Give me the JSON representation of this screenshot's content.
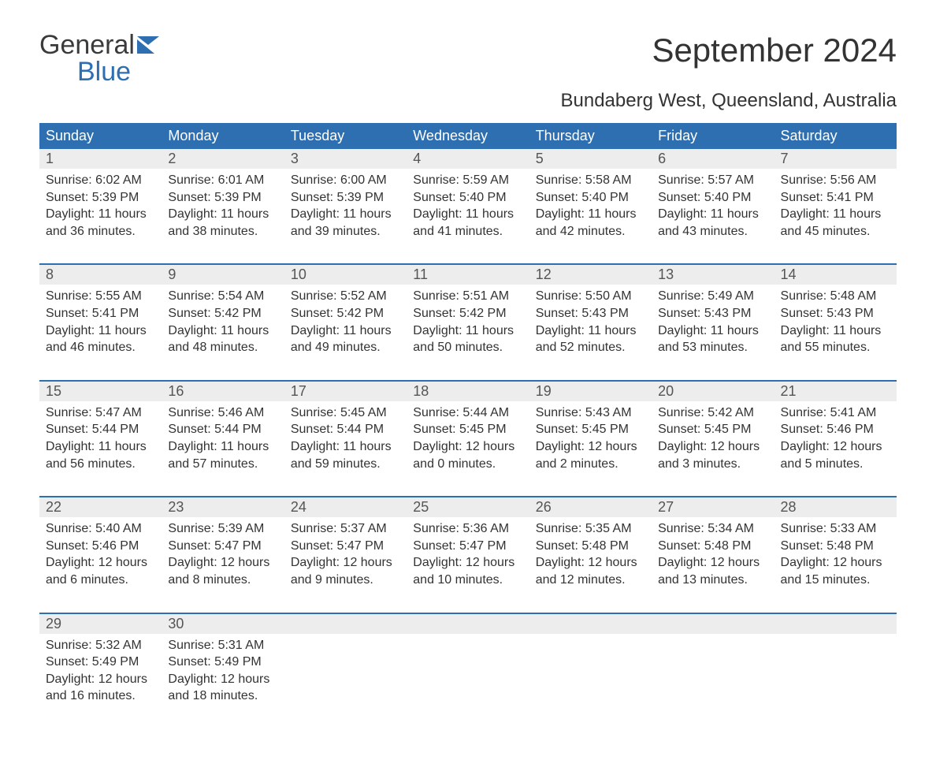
{
  "logo": {
    "word1": "General",
    "word2": "Blue"
  },
  "title": "September 2024",
  "subtitle": "Bundaberg West, Queensland, Australia",
  "colors": {
    "header_bg": "#2d6fb0",
    "header_text": "#ffffff",
    "daynum_bg": "#ededed",
    "body_text": "#333333",
    "page_bg": "#ffffff"
  },
  "font": {
    "title_size": 42,
    "subtitle_size": 24,
    "dow_size": 18,
    "cell_size": 16
  },
  "days_of_week": [
    "Sunday",
    "Monday",
    "Tuesday",
    "Wednesday",
    "Thursday",
    "Friday",
    "Saturday"
  ],
  "weeks": [
    [
      {
        "n": "1",
        "sunrise": "6:02 AM",
        "sunset": "5:39 PM",
        "dl": "11 hours and 36 minutes."
      },
      {
        "n": "2",
        "sunrise": "6:01 AM",
        "sunset": "5:39 PM",
        "dl": "11 hours and 38 minutes."
      },
      {
        "n": "3",
        "sunrise": "6:00 AM",
        "sunset": "5:39 PM",
        "dl": "11 hours and 39 minutes."
      },
      {
        "n": "4",
        "sunrise": "5:59 AM",
        "sunset": "5:40 PM",
        "dl": "11 hours and 41 minutes."
      },
      {
        "n": "5",
        "sunrise": "5:58 AM",
        "sunset": "5:40 PM",
        "dl": "11 hours and 42 minutes."
      },
      {
        "n": "6",
        "sunrise": "5:57 AM",
        "sunset": "5:40 PM",
        "dl": "11 hours and 43 minutes."
      },
      {
        "n": "7",
        "sunrise": "5:56 AM",
        "sunset": "5:41 PM",
        "dl": "11 hours and 45 minutes."
      }
    ],
    [
      {
        "n": "8",
        "sunrise": "5:55 AM",
        "sunset": "5:41 PM",
        "dl": "11 hours and 46 minutes."
      },
      {
        "n": "9",
        "sunrise": "5:54 AM",
        "sunset": "5:42 PM",
        "dl": "11 hours and 48 minutes."
      },
      {
        "n": "10",
        "sunrise": "5:52 AM",
        "sunset": "5:42 PM",
        "dl": "11 hours and 49 minutes."
      },
      {
        "n": "11",
        "sunrise": "5:51 AM",
        "sunset": "5:42 PM",
        "dl": "11 hours and 50 minutes."
      },
      {
        "n": "12",
        "sunrise": "5:50 AM",
        "sunset": "5:43 PM",
        "dl": "11 hours and 52 minutes."
      },
      {
        "n": "13",
        "sunrise": "5:49 AM",
        "sunset": "5:43 PM",
        "dl": "11 hours and 53 minutes."
      },
      {
        "n": "14",
        "sunrise": "5:48 AM",
        "sunset": "5:43 PM",
        "dl": "11 hours and 55 minutes."
      }
    ],
    [
      {
        "n": "15",
        "sunrise": "5:47 AM",
        "sunset": "5:44 PM",
        "dl": "11 hours and 56 minutes."
      },
      {
        "n": "16",
        "sunrise": "5:46 AM",
        "sunset": "5:44 PM",
        "dl": "11 hours and 57 minutes."
      },
      {
        "n": "17",
        "sunrise": "5:45 AM",
        "sunset": "5:44 PM",
        "dl": "11 hours and 59 minutes."
      },
      {
        "n": "18",
        "sunrise": "5:44 AM",
        "sunset": "5:45 PM",
        "dl": "12 hours and 0 minutes."
      },
      {
        "n": "19",
        "sunrise": "5:43 AM",
        "sunset": "5:45 PM",
        "dl": "12 hours and 2 minutes."
      },
      {
        "n": "20",
        "sunrise": "5:42 AM",
        "sunset": "5:45 PM",
        "dl": "12 hours and 3 minutes."
      },
      {
        "n": "21",
        "sunrise": "5:41 AM",
        "sunset": "5:46 PM",
        "dl": "12 hours and 5 minutes."
      }
    ],
    [
      {
        "n": "22",
        "sunrise": "5:40 AM",
        "sunset": "5:46 PM",
        "dl": "12 hours and 6 minutes."
      },
      {
        "n": "23",
        "sunrise": "5:39 AM",
        "sunset": "5:47 PM",
        "dl": "12 hours and 8 minutes."
      },
      {
        "n": "24",
        "sunrise": "5:37 AM",
        "sunset": "5:47 PM",
        "dl": "12 hours and 9 minutes."
      },
      {
        "n": "25",
        "sunrise": "5:36 AM",
        "sunset": "5:47 PM",
        "dl": "12 hours and 10 minutes."
      },
      {
        "n": "26",
        "sunrise": "5:35 AM",
        "sunset": "5:48 PM",
        "dl": "12 hours and 12 minutes."
      },
      {
        "n": "27",
        "sunrise": "5:34 AM",
        "sunset": "5:48 PM",
        "dl": "12 hours and 13 minutes."
      },
      {
        "n": "28",
        "sunrise": "5:33 AM",
        "sunset": "5:48 PM",
        "dl": "12 hours and 15 minutes."
      }
    ],
    [
      {
        "n": "29",
        "sunrise": "5:32 AM",
        "sunset": "5:49 PM",
        "dl": "12 hours and 16 minutes."
      },
      {
        "n": "30",
        "sunrise": "5:31 AM",
        "sunset": "5:49 PM",
        "dl": "12 hours and 18 minutes."
      },
      null,
      null,
      null,
      null,
      null
    ]
  ],
  "labels": {
    "sunrise": "Sunrise:",
    "sunset": "Sunset:",
    "daylight": "Daylight:"
  }
}
